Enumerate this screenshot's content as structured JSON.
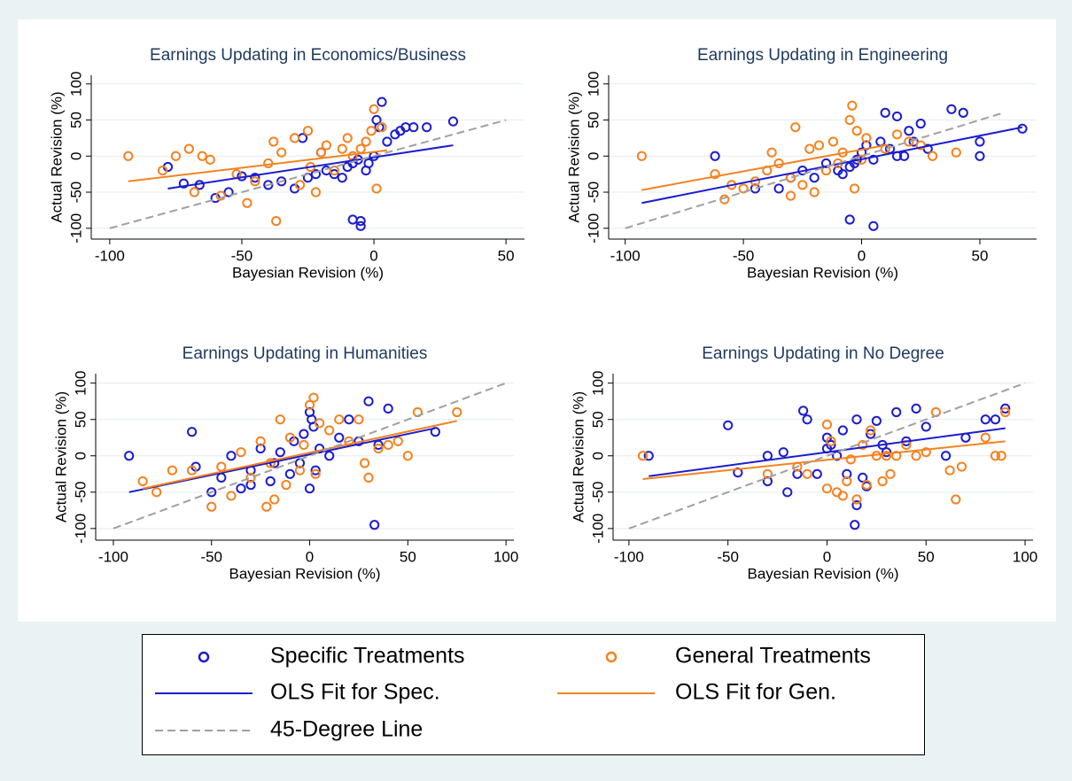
{
  "chart_data": [
    {
      "type": "scatter",
      "title": "Earnings Updating in Economics/Business",
      "x_label": "Bayesian Revision (%)",
      "y_label": "Actual Revision (%)",
      "xlim": [
        -107,
        57
      ],
      "ylim": [
        -115,
        112
      ],
      "xticks": [
        -100,
        -50,
        0,
        50
      ],
      "yticks": [
        -100,
        -50,
        0,
        50,
        100
      ],
      "grid": true,
      "series": [
        {
          "name": "Specific Treatments",
          "type": "scatter",
          "color": "#1c1cd0",
          "x": [
            -78,
            -72,
            -66,
            -60,
            -55,
            -50,
            -45,
            -40,
            -35,
            -30,
            -25,
            -22,
            -18,
            -15,
            -12,
            -10,
            -8,
            -6,
            -5,
            -3,
            -2,
            0,
            1,
            2,
            3,
            5,
            8,
            10,
            12,
            15,
            20,
            30,
            -8,
            -5,
            -20,
            -27
          ],
          "values": [
            -15,
            -38,
            -40,
            -58,
            -50,
            -28,
            -30,
            -40,
            -35,
            -45,
            -30,
            -25,
            -20,
            -25,
            -30,
            -15,
            -10,
            -5,
            -90,
            -20,
            -10,
            0,
            50,
            40,
            75,
            20,
            30,
            35,
            40,
            40,
            40,
            48,
            -88,
            -97,
            5,
            25
          ]
        },
        {
          "name": "General Treatments",
          "type": "scatter",
          "color": "#f58220",
          "x": [
            -93,
            -80,
            -75,
            -70,
            -68,
            -65,
            -62,
            -58,
            -52,
            -48,
            -45,
            -40,
            -37,
            -35,
            -30,
            -28,
            -25,
            -22,
            -20,
            -15,
            -12,
            -10,
            -8,
            -5,
            -3,
            -1,
            0,
            1,
            3,
            -38,
            -24,
            -18
          ],
          "values": [
            0,
            -20,
            0,
            10,
            -50,
            0,
            -5,
            -55,
            -25,
            -65,
            -35,
            -10,
            -90,
            5,
            25,
            -40,
            35,
            -50,
            5,
            -20,
            10,
            25,
            0,
            10,
            20,
            35,
            65,
            -45,
            40,
            20,
            -15,
            15
          ]
        },
        {
          "name": "OLS Fit for Spec.",
          "type": "line",
          "color": "#1c1cd0",
          "x": [
            -78,
            30
          ],
          "values": [
            -45,
            15
          ]
        },
        {
          "name": "OLS Fit for Gen.",
          "type": "line",
          "color": "#f58220",
          "x": [
            -93,
            5
          ],
          "values": [
            -35,
            8
          ]
        },
        {
          "name": "45-Degree Line",
          "type": "line",
          "color": "#a0a0a0",
          "dashed": true,
          "x": [
            -100,
            50
          ],
          "values": [
            -100,
            50
          ]
        }
      ]
    },
    {
      "type": "scatter",
      "title": "Earnings Updating in Engineering",
      "x_label": "Bayesian Revision (%)",
      "y_label": "Actual Revision (%)",
      "xlim": [
        -107,
        74
      ],
      "ylim": [
        -115,
        112
      ],
      "xticks": [
        -100,
        -50,
        0,
        50
      ],
      "yticks": [
        -100,
        -50,
        0,
        50,
        100
      ],
      "grid": true,
      "series": [
        {
          "type": "scatter",
          "color": "#1c1cd0",
          "x": [
            -62,
            -45,
            -35,
            -30,
            -25,
            -20,
            -15,
            -10,
            -8,
            -5,
            -3,
            -2,
            0,
            2,
            5,
            8,
            10,
            12,
            15,
            18,
            20,
            22,
            25,
            28,
            38,
            43,
            50,
            50,
            68,
            -5,
            5,
            15
          ],
          "values": [
            0,
            -45,
            -45,
            -30,
            -20,
            -30,
            -10,
            -20,
            -25,
            -15,
            -10,
            -5,
            5,
            15,
            -5,
            20,
            60,
            10,
            55,
            0,
            35,
            20,
            45,
            10,
            65,
            60,
            20,
            0,
            38,
            -88,
            -97,
            0
          ]
        },
        {
          "type": "scatter",
          "color": "#f58220",
          "x": [
            -93,
            -62,
            -58,
            -55,
            -50,
            -45,
            -40,
            -38,
            -35,
            -30,
            -28,
            -25,
            -22,
            -20,
            -18,
            -15,
            -12,
            -10,
            -8,
            -5,
            -4,
            -3,
            -2,
            0,
            2,
            10,
            15,
            20,
            25,
            30,
            40,
            -30
          ],
          "values": [
            0,
            -25,
            -60,
            -40,
            -45,
            -35,
            -20,
            5,
            -10,
            -30,
            40,
            -40,
            10,
            -50,
            15,
            -20,
            20,
            -10,
            5,
            50,
            70,
            -45,
            35,
            -5,
            25,
            10,
            30,
            20,
            15,
            0,
            5,
            -55
          ]
        },
        {
          "type": "line",
          "color": "#1c1cd0",
          "x": [
            -93,
            68
          ],
          "values": [
            -65,
            40
          ]
        },
        {
          "type": "line",
          "color": "#f58220",
          "x": [
            -93,
            10
          ],
          "values": [
            -47,
            15
          ]
        },
        {
          "type": "line",
          "color": "#a0a0a0",
          "dashed": true,
          "x": [
            -100,
            60
          ],
          "values": [
            -100,
            60
          ]
        }
      ]
    },
    {
      "type": "scatter",
      "title": "Earnings Updating in Humanities",
      "x_label": "Bayesian Revision (%)",
      "y_label": "Actual Revision (%)",
      "xlim": [
        -109,
        104
      ],
      "ylim": [
        -116,
        113
      ],
      "xticks": [
        -100,
        -50,
        0,
        50,
        100
      ],
      "yticks": [
        -100,
        -50,
        0,
        50,
        100
      ],
      "grid": true,
      "series": [
        {
          "type": "scatter",
          "color": "#1c1cd0",
          "x": [
            -92,
            -60,
            -58,
            -50,
            -45,
            -40,
            -35,
            -30,
            -25,
            -20,
            -18,
            -15,
            -10,
            -8,
            -5,
            -3,
            0,
            1,
            2,
            3,
            5,
            10,
            15,
            20,
            25,
            30,
            33,
            35,
            40,
            64,
            -30,
            0
          ],
          "values": [
            0,
            33,
            -15,
            -50,
            -30,
            0,
            -45,
            -20,
            10,
            -35,
            -10,
            5,
            -25,
            20,
            -10,
            30,
            60,
            50,
            40,
            -20,
            10,
            0,
            25,
            50,
            20,
            75,
            -95,
            15,
            65,
            33,
            -40,
            -45
          ]
        },
        {
          "type": "scatter",
          "color": "#f58220",
          "x": [
            -85,
            -78,
            -70,
            -60,
            -50,
            -45,
            -40,
            -35,
            -30,
            -25,
            -22,
            -20,
            -15,
            -12,
            -10,
            -5,
            -3,
            0,
            2,
            3,
            5,
            10,
            15,
            20,
            25,
            28,
            30,
            35,
            40,
            45,
            50,
            55,
            75,
            -18
          ],
          "values": [
            -35,
            -50,
            -20,
            -20,
            -70,
            -15,
            -55,
            5,
            -30,
            20,
            -70,
            -10,
            50,
            -40,
            25,
            -20,
            15,
            70,
            80,
            -25,
            45,
            35,
            50,
            20,
            50,
            -10,
            -30,
            10,
            15,
            20,
            0,
            60,
            60,
            -60
          ]
        },
        {
          "type": "line",
          "color": "#1c1cd0",
          "x": [
            -92,
            64
          ],
          "values": [
            -50,
            38
          ]
        },
        {
          "type": "line",
          "color": "#f58220",
          "x": [
            -85,
            75
          ],
          "values": [
            -45,
            48
          ]
        },
        {
          "type": "line",
          "color": "#a0a0a0",
          "dashed": true,
          "x": [
            -100,
            100
          ],
          "values": [
            -100,
            100
          ]
        }
      ]
    },
    {
      "type": "scatter",
      "title": "Earnings Updating in No Degree",
      "x_label": "Bayesian Revision (%)",
      "y_label": "Actual Revision (%)",
      "xlim": [
        -108,
        104
      ],
      "ylim": [
        -116,
        113
      ],
      "xticks": [
        -100,
        -50,
        0,
        50,
        100
      ],
      "yticks": [
        -100,
        -50,
        0,
        50,
        100
      ],
      "grid": true,
      "series": [
        {
          "type": "scatter",
          "color": "#1c1cd0",
          "x": [
            -90,
            -50,
            -45,
            -30,
            -30,
            -22,
            -20,
            -15,
            -12,
            -10,
            -5,
            0,
            0,
            2,
            5,
            8,
            10,
            14,
            15,
            15,
            18,
            20,
            22,
            25,
            28,
            30,
            35,
            40,
            45,
            50,
            60,
            70,
            80,
            85,
            90
          ],
          "values": [
            0,
            42,
            -23,
            -35,
            0,
            5,
            -50,
            -25,
            62,
            50,
            -25,
            10,
            25,
            15,
            0,
            35,
            -25,
            -95,
            -68,
            50,
            -30,
            -42,
            30,
            48,
            15,
            5,
            60,
            20,
            65,
            40,
            0,
            25,
            50,
            50,
            65
          ]
        },
        {
          "type": "scatter",
          "color": "#f58220",
          "x": [
            -93,
            -30,
            -15,
            -10,
            0,
            0,
            2,
            5,
            8,
            10,
            12,
            15,
            18,
            20,
            22,
            25,
            28,
            30,
            32,
            35,
            40,
            45,
            50,
            55,
            62,
            65,
            68,
            80,
            85,
            88,
            90
          ],
          "values": [
            0,
            -25,
            -15,
            -25,
            43,
            -45,
            20,
            -50,
            -55,
            -35,
            -5,
            -60,
            15,
            -40,
            35,
            0,
            -35,
            0,
            -25,
            0,
            15,
            0,
            5,
            60,
            -20,
            -60,
            -15,
            25,
            0,
            0,
            60
          ]
        },
        {
          "type": "line",
          "color": "#1c1cd0",
          "x": [
            -90,
            90
          ],
          "values": [
            -28,
            38
          ]
        },
        {
          "type": "line",
          "color": "#f58220",
          "x": [
            -93,
            90
          ],
          "values": [
            -32,
            20
          ]
        },
        {
          "type": "line",
          "color": "#a0a0a0",
          "dashed": true,
          "x": [
            -100,
            100
          ],
          "values": [
            -100,
            100
          ]
        }
      ]
    }
  ]
}
